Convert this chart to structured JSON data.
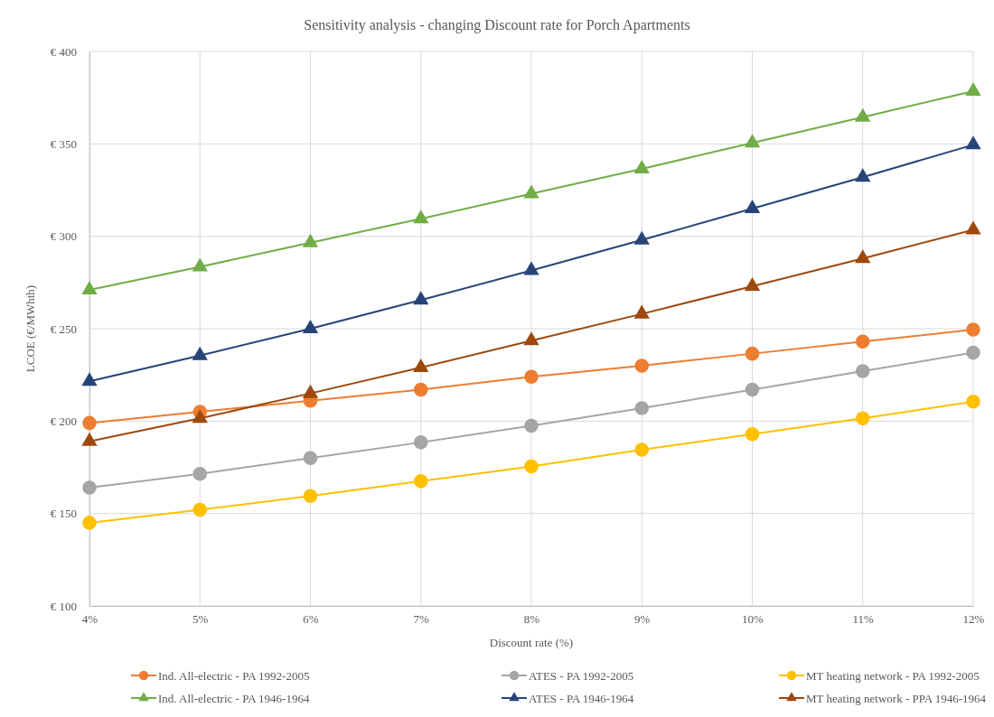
{
  "chart_data": {
    "type": "line",
    "title": "Sensitivity analysis - changing Discount rate for Porch Apartments",
    "xlabel": "Discount rate (%)",
    "ylabel": "LCOE (€/MWhth)",
    "x": [
      4,
      5,
      6,
      7,
      8,
      9,
      10,
      11,
      12
    ],
    "xlim": [
      4,
      12
    ],
    "xticks": [
      {
        "value": 4,
        "label": "4%"
      },
      {
        "value": 5,
        "label": "5%"
      },
      {
        "value": 6,
        "label": "6%"
      },
      {
        "value": 7,
        "label": "7%"
      },
      {
        "value": 8,
        "label": "8%"
      },
      {
        "value": 9,
        "label": "9%"
      },
      {
        "value": 10,
        "label": "10%"
      },
      {
        "value": 11,
        "label": "11%"
      },
      {
        "value": 12,
        "label": "12%"
      }
    ],
    "ylim": [
      100,
      400
    ],
    "yticks": [
      {
        "value": 100,
        "label": "€ 100"
      },
      {
        "value": 150,
        "label": "€ 150"
      },
      {
        "value": 200,
        "label": "€ 200"
      },
      {
        "value": 250,
        "label": "€ 250"
      },
      {
        "value": 300,
        "label": "€ 300"
      },
      {
        "value": 350,
        "label": "€ 350"
      },
      {
        "value": 400,
        "label": "€ 400"
      }
    ],
    "grid": true,
    "legend": "bottom",
    "line_style": "solid",
    "series": [
      {
        "name": "Ind. All-electric  - PA 1992-2005",
        "color": "#ed7d31",
        "marker": "circle",
        "values": [
          199,
          205,
          211,
          217,
          224,
          230,
          236.5,
          243,
          249.5
        ]
      },
      {
        "name": "ATES  - PA 1992-2005",
        "color": "#a5a5a5",
        "marker": "circle",
        "values": [
          164,
          171.5,
          180,
          188.5,
          197.5,
          207,
          217,
          227,
          237
        ]
      },
      {
        "name": "MT heating network  - PA 1992-2005",
        "color": "#ffc000",
        "marker": "circle",
        "values": [
          145,
          152,
          159.5,
          167.5,
          175.5,
          184.5,
          193,
          201.5,
          210.5
        ]
      },
      {
        "name": "Ind. All-electric  - PA 1946-1964",
        "color": "#70ad47",
        "marker": "triangle",
        "values": [
          271,
          283.5,
          296.5,
          309.5,
          323,
          336.5,
          350.5,
          364.5,
          378.5
        ]
      },
      {
        "name": "ATES  - PA 1946-1964",
        "color": "#264478",
        "marker": "triangle",
        "values": [
          221.5,
          235.5,
          250,
          265.5,
          281.5,
          298,
          315,
          332,
          349.5
        ]
      },
      {
        "name": "MT heating network  - PPA 1946-1964",
        "color": "#9e480e",
        "marker": "triangle",
        "values": [
          189,
          201.5,
          215,
          229,
          243.5,
          258,
          273,
          288,
          303.5
        ]
      }
    ]
  }
}
